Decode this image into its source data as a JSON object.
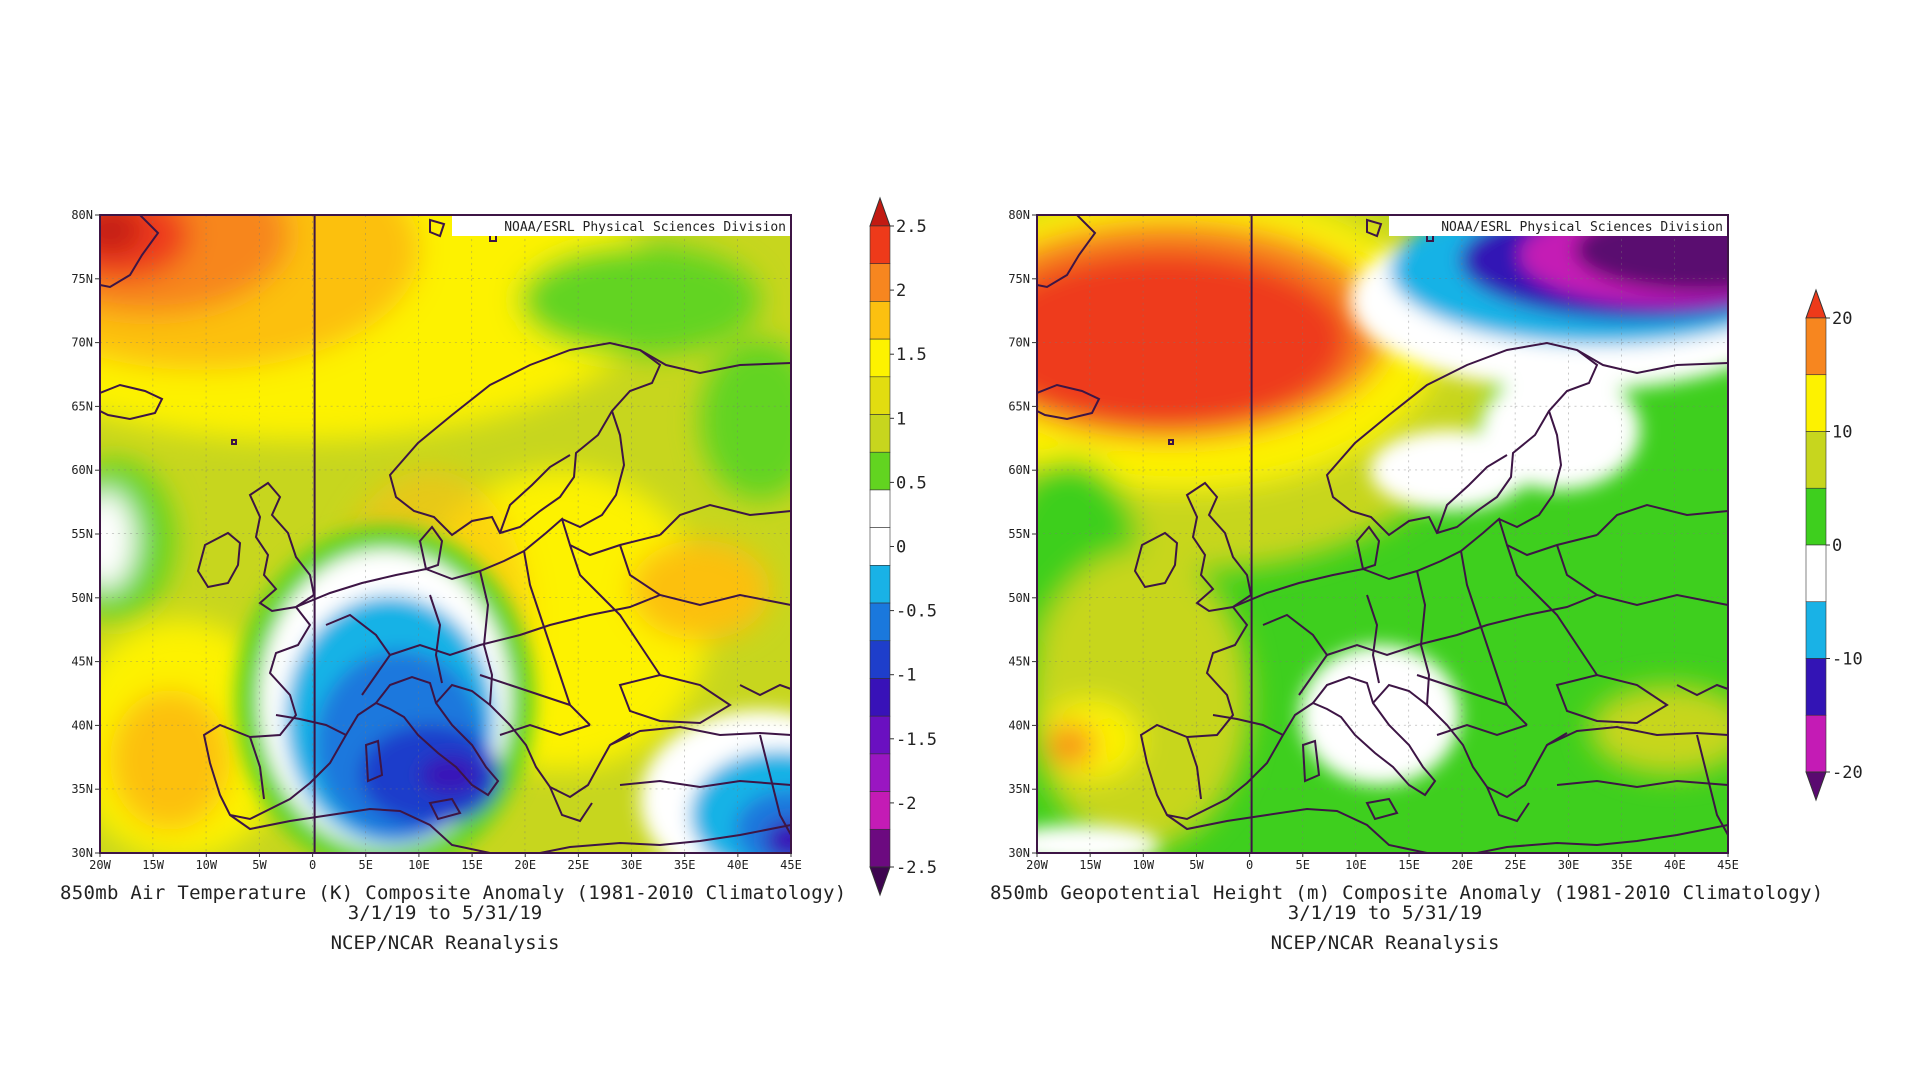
{
  "credit": "NOAA/ESRL Physical Sciences Division",
  "lat_labels": [
    "80N",
    "75N",
    "70N",
    "65N",
    "60N",
    "55N",
    "50N",
    "45N",
    "40N",
    "35N",
    "30N"
  ],
  "lon_labels": [
    "20W",
    "15W",
    "10W",
    "5W",
    "0",
    "5E",
    "10E",
    "15E",
    "20E",
    "25E",
    "30E",
    "35E",
    "40E",
    "45E"
  ],
  "colors": {
    "border": "#3d1545",
    "grid": "#888888"
  },
  "left_map": {
    "title": "850mb Air Temperature (K) Composite Anomaly (1981-2010 Climatology)",
    "dates": "3/1/19  to 5/31/19",
    "source": "NCEP/NCAR Reanalysis",
    "colorbar": {
      "labels": [
        "2.5",
        "2",
        "1.5",
        "1",
        "0.5",
        "0",
        "-0.5",
        "-1",
        "-1.5",
        "-2",
        "-2.5"
      ],
      "colors": [
        "#c21a12",
        "#ee3a1a",
        "#f7861f",
        "#fcc010",
        "#fdf200",
        "#e2dd10",
        "#c7d61e",
        "#62d420",
        "#ffffff",
        "#ffffff",
        "#19b2e6",
        "#1a78dd",
        "#1e3ecb",
        "#3812b8",
        "#6a10c0",
        "#9a16c2",
        "#c41bb5",
        "#6c0a80",
        "#3e0550"
      ]
    }
  },
  "right_map": {
    "title": "850mb Geopotential Height (m) Composite Anomaly (1981-2010 Climatology)",
    "dates": "3/1/19  to 5/31/19",
    "source": "NCEP/NCAR Reanalysis",
    "colorbar": {
      "labels": [
        "20",
        "10",
        "0",
        "-10",
        "-20"
      ],
      "colors": [
        "#ee3a1a",
        "#f7861f",
        "#fdf200",
        "#c7d61e",
        "#3ecf1e",
        "#ffffff",
        "#19b2e6",
        "#3314b5",
        "#c41bb5",
        "#5a0a70"
      ]
    }
  }
}
